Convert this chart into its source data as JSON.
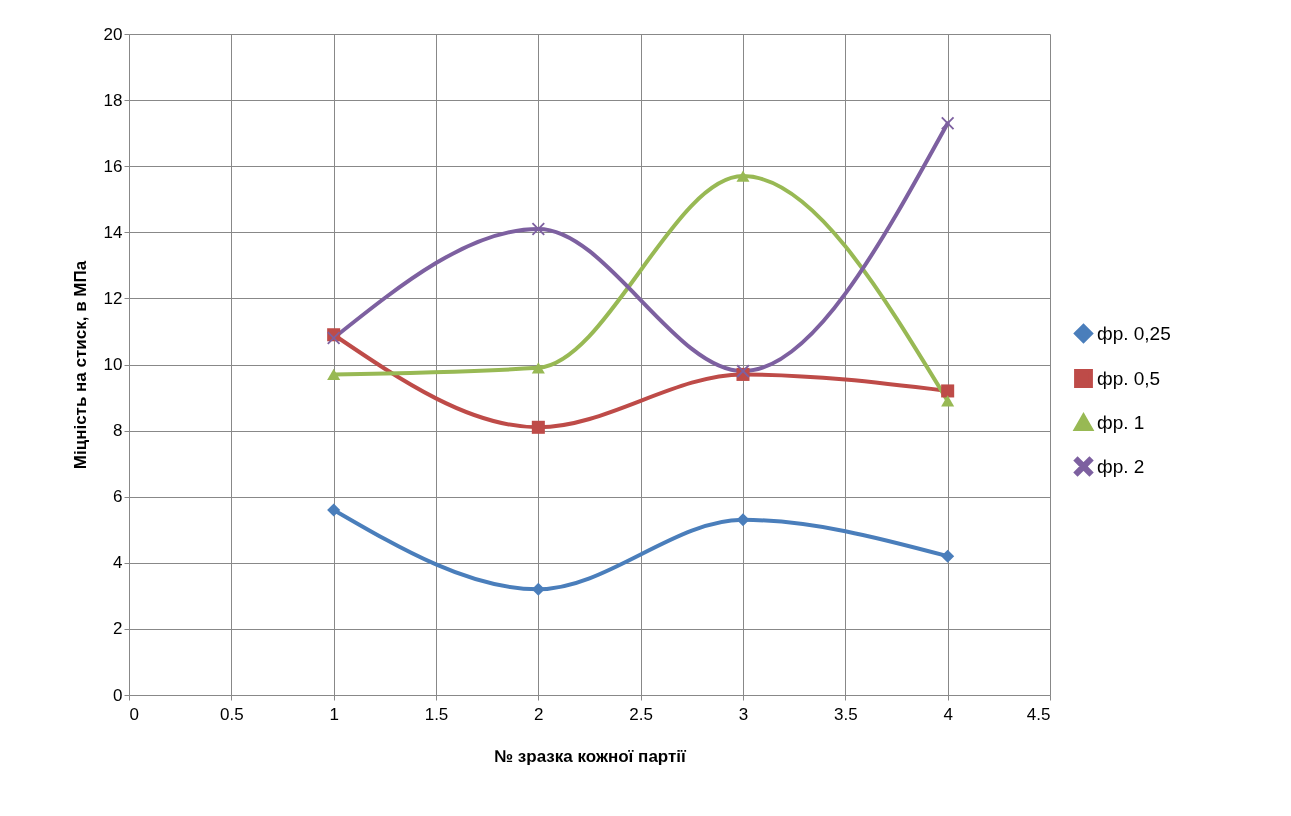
{
  "chart_data": {
    "type": "line",
    "xlabel": "№ зразка кожної партії",
    "ylabel": "Міцність на стиск, в МПа",
    "xlim": [
      0,
      4.5
    ],
    "xticks": [
      0,
      0.5,
      1,
      1.5,
      2,
      2.5,
      3,
      3.5,
      4,
      4.5
    ],
    "ylim": [
      0,
      20
    ],
    "yticks": [
      0,
      2,
      4,
      6,
      8,
      10,
      12,
      14,
      16,
      18,
      20
    ],
    "x": [
      1,
      2,
      3,
      4
    ],
    "grid": true,
    "legend": "right",
    "series": [
      {
        "name": "фр. 0,25",
        "color": "#4a7ebb",
        "marker": "diamond",
        "values": [
          5.6,
          3.2,
          5.3,
          4.2
        ]
      },
      {
        "name": "фр. 0,5",
        "color": "#be4b48",
        "marker": "square",
        "values": [
          10.9,
          8.1,
          9.7,
          9.2
        ]
      },
      {
        "name": "фр. 1",
        "color": "#98b954",
        "marker": "triangle",
        "values": [
          9.7,
          9.9,
          15.7,
          8.9
        ]
      },
      {
        "name": "фр. 2",
        "color": "#7d60a0",
        "marker": "cross",
        "values": [
          10.8,
          14.1,
          9.8,
          17.3
        ]
      }
    ]
  }
}
